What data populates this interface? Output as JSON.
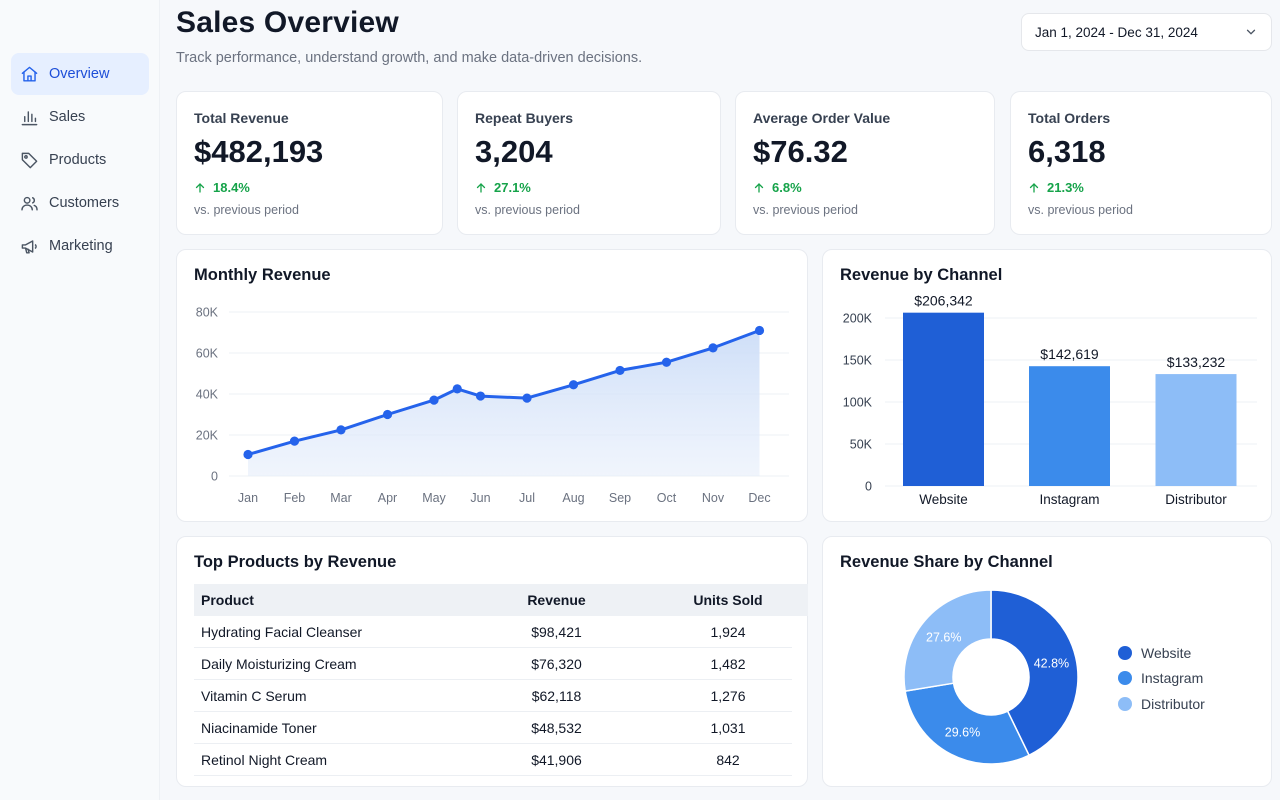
{
  "sidebar": {
    "items": [
      {
        "label": "Overview",
        "icon": "home-icon",
        "active": true
      },
      {
        "label": "Sales",
        "icon": "bar-chart-icon"
      },
      {
        "label": "Products",
        "icon": "tag-icon"
      },
      {
        "label": "Customers",
        "icon": "users-icon"
      },
      {
        "label": "Marketing",
        "icon": "megaphone-icon"
      }
    ]
  },
  "header": {
    "title": "Sales Overview",
    "subtitle": "Track performance, understand growth, and make data-driven decisions.",
    "date_range": "Jan 1, 2024 - Dec 31, 2024"
  },
  "kpis": [
    {
      "label": "Total Revenue",
      "value": "$482,193",
      "change": "18.4%",
      "note": "vs. previous period"
    },
    {
      "label": "Repeat Buyers",
      "value": "3,204",
      "change": "27.1%",
      "note": "vs. previous period"
    },
    {
      "label": "Average Order Value",
      "value": "$76.32",
      "change": "6.8%",
      "note": "vs. previous period"
    },
    {
      "label": "Total Orders",
      "value": "6,318",
      "change": "21.3%",
      "note": "vs. previous period"
    }
  ],
  "colors": {
    "accent": "#2563eb",
    "positive": "#16a34a",
    "channel_website": "#1f5fd6",
    "channel_instagram": "#3b8beb",
    "channel_distributor": "#8dbdf7"
  },
  "chart_data": [
    {
      "type": "line",
      "title": "Monthly Revenue",
      "categories": [
        "Jan",
        "Feb",
        "Mar",
        "Apr",
        "May",
        "Jun",
        "Jul",
        "Aug",
        "Sep",
        "Oct",
        "Nov",
        "Dec"
      ],
      "x": [
        0,
        1,
        2,
        3,
        4,
        4.5,
        5,
        6,
        7,
        8,
        9,
        10,
        11
      ],
      "values": [
        10500,
        17000,
        22500,
        30000,
        37000,
        42500,
        39000,
        38000,
        44500,
        51500,
        55500,
        62500,
        71000
      ],
      "yticks": [
        "0",
        "20K",
        "40K",
        "60K",
        "80K"
      ],
      "ylim": [
        0,
        80000
      ],
      "area_fill": true,
      "grid": true
    },
    {
      "type": "bar",
      "title": "Revenue by Channel",
      "categories": [
        "Website",
        "Instagram",
        "Distributor"
      ],
      "values": [
        206342,
        142619,
        133232
      ],
      "value_labels": [
        "$206,342",
        "$142,619",
        "$133,232"
      ],
      "yticks": [
        "0",
        "50K",
        "100K",
        "150K",
        "200K"
      ],
      "ylim": [
        0,
        200000
      ],
      "grid": true
    },
    {
      "type": "pie",
      "title": "Revenue Share by Channel",
      "categories": [
        "Website",
        "Instagram",
        "Distributor"
      ],
      "values": [
        42.8,
        29.6,
        27.6
      ],
      "value_labels": [
        "42.8%",
        "29.6%",
        "27.6%"
      ],
      "donut": true,
      "legend": "right"
    }
  ],
  "top_products": {
    "title": "Top Products by Revenue",
    "columns": [
      "Product",
      "Revenue",
      "Units Sold"
    ],
    "rows": [
      [
        "Hydrating Facial Cleanser",
        "$98,421",
        "1,924"
      ],
      [
        "Daily Moisturizing Cream",
        "$76,320",
        "1,482"
      ],
      [
        "Vitamin C Serum",
        "$62,118",
        "1,276"
      ],
      [
        "Niacinamide Toner",
        "$48,532",
        "1,031"
      ],
      [
        "Retinol Night Cream",
        "$41,906",
        "842"
      ]
    ]
  }
}
